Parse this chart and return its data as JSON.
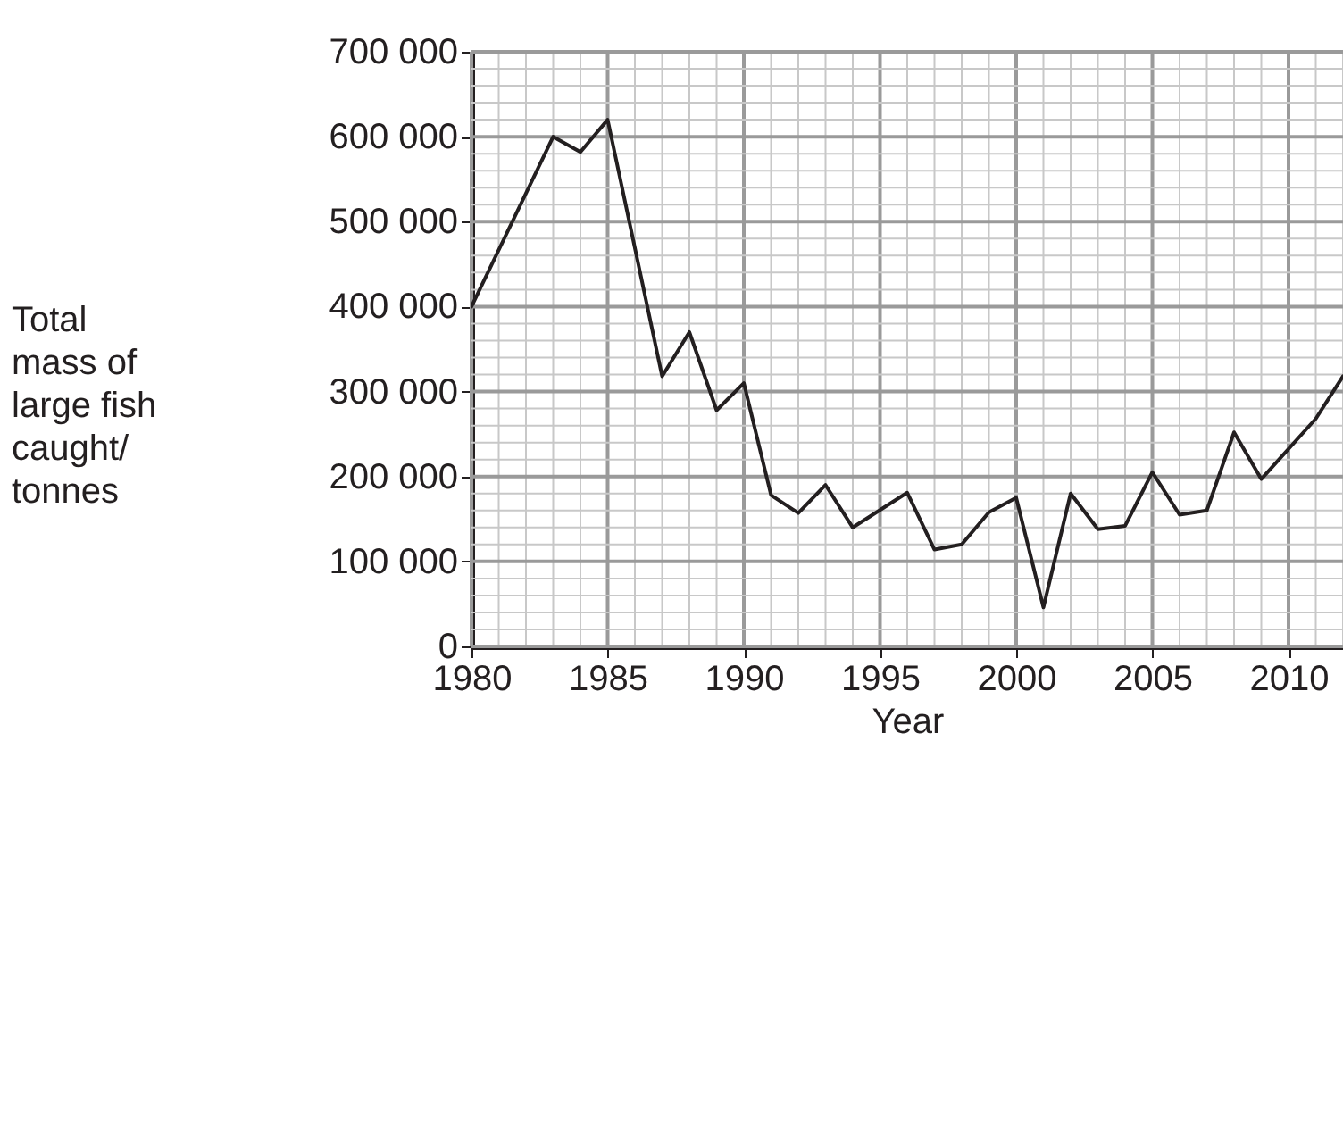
{
  "chart_data": {
    "type": "line",
    "xlabel": "Year",
    "ylabel": "Total\nmass of\nlarge fish\ncaught/\ntonnes",
    "x": [
      1980,
      1983,
      1984,
      1985,
      1987,
      1988,
      1989,
      1990,
      1991,
      1992,
      1993,
      1994,
      1996,
      1997,
      1998,
      1999,
      2000,
      2001,
      2002,
      2003,
      2004,
      2005,
      2006,
      2007,
      2008,
      2009,
      2011,
      2012
    ],
    "series": [
      {
        "color": "#231f20",
        "values": [
          400000,
          600000,
          582000,
          620000,
          318000,
          370000,
          278000,
          310000,
          178000,
          157000,
          190000,
          140000,
          181000,
          114000,
          120000,
          158000,
          175000,
          46000,
          180000,
          138000,
          142000,
          205000,
          155000,
          160000,
          252000,
          197000,
          268000,
          318000
        ]
      }
    ],
    "xlim": [
      1980,
      2012
    ],
    "xticks": [
      1980,
      1985,
      1990,
      1995,
      2000,
      2005,
      2010
    ],
    "ylim": [
      0,
      700000
    ],
    "yticks": [
      {
        "value": 0,
        "label": "0"
      },
      {
        "value": 100000,
        "label": "100 000"
      },
      {
        "value": 200000,
        "label": "200 000"
      },
      {
        "value": 300000,
        "label": "300 000"
      },
      {
        "value": 400000,
        "label": "400 000"
      },
      {
        "value": 500000,
        "label": "500 000"
      },
      {
        "value": 600000,
        "label": "600 000"
      },
      {
        "value": 700000,
        "label": "700 000"
      }
    ],
    "grid": true,
    "marker": "none",
    "line_style": "solid",
    "legend": false
  }
}
